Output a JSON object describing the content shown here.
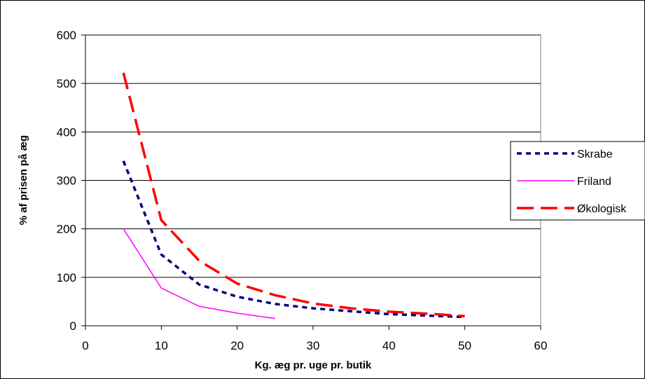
{
  "chart_data": {
    "type": "line",
    "title": "",
    "xlabel": "Kg. æg pr. uge pr. butik",
    "ylabel": "% af prisen på æg",
    "xlim": [
      0,
      60
    ],
    "ylim": [
      0,
      600
    ],
    "xticks": [
      0,
      10,
      20,
      30,
      40,
      50,
      60
    ],
    "yticks": [
      0,
      100,
      200,
      300,
      400,
      500,
      600
    ],
    "grid": "horizontal",
    "legend": "right",
    "series": [
      {
        "name": "Skrabe",
        "color": "#000080",
        "style": "dotted",
        "x": [
          5,
          10,
          15,
          20,
          25,
          30,
          35,
          40,
          45,
          50
        ],
        "y": [
          340,
          147,
          85,
          60,
          45,
          36,
          30,
          24,
          21,
          18
        ]
      },
      {
        "name": "Friland",
        "color": "#FF00FF",
        "style": "solid",
        "x": [
          5,
          10,
          15,
          20,
          25
        ],
        "y": [
          200,
          78,
          40,
          26,
          15
        ]
      },
      {
        "name": "Økologisk",
        "color": "#FF0000",
        "style": "dashed",
        "x": [
          5,
          10,
          15,
          20,
          25,
          30,
          35,
          40,
          45,
          50
        ],
        "y": [
          522,
          218,
          134,
          87,
          63,
          46,
          36,
          29,
          25,
          20
        ]
      }
    ]
  }
}
